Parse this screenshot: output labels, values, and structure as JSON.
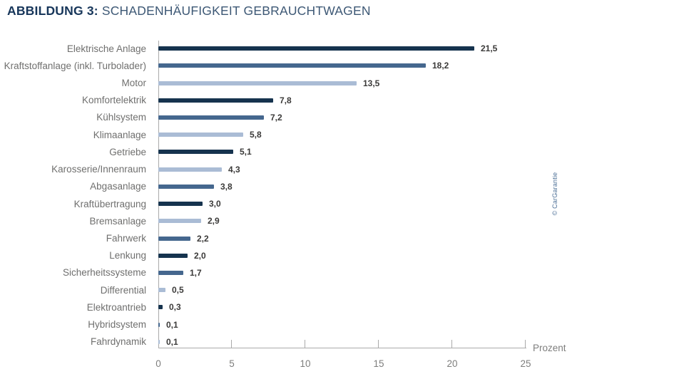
{
  "title": {
    "bold": "ABBILDUNG 3:",
    "regular": "SCHADENHÄUFIGKEIT GEBRAUCHTWAGEN"
  },
  "copyright": "© CarGarantie",
  "palette": {
    "dark": "#16334e",
    "medium": "#45678e",
    "light": "#aabcd5"
  },
  "chart_data": {
    "type": "bar",
    "orientation": "horizontal",
    "title": "Abbildung 3: Schadenhäufigkeit Gebrauchtwagen",
    "xlabel": "Prozent",
    "xlim": [
      0,
      25
    ],
    "xticks": [
      0,
      5,
      10,
      15,
      20,
      25
    ],
    "grid": false,
    "legend": false,
    "categories": [
      "Elektrische Anlage",
      "Kraftstoffanlage (inkl. Turbolader)",
      "Motor",
      "Komfortelektrik",
      "Kühlsystem",
      "Klimaanlage",
      "Getriebe",
      "Karosserie/Innenraum",
      "Abgasanlage",
      "Kraftübertragung",
      "Bremsanlage",
      "Fahrwerk",
      "Lenkung",
      "Sicherheitssysteme",
      "Differential",
      "Elektroantrieb",
      "Hybridsystem",
      "Fahrdynamik"
    ],
    "values": [
      21.5,
      18.2,
      13.5,
      7.8,
      7.2,
      5.8,
      5.1,
      4.3,
      3.8,
      3.0,
      2.9,
      2.2,
      2.0,
      1.7,
      0.5,
      0.3,
      0.1,
      0.1
    ],
    "value_labels": [
      "21,5",
      "18,2",
      "13,5",
      "7,8",
      "7,2",
      "5,8",
      "5,1",
      "4,3",
      "3,8",
      "3,0",
      "2,9",
      "2,2",
      "2,0",
      "1,7",
      "0,5",
      "0,3",
      "0,1",
      "0,1"
    ],
    "bar_colors": [
      "dark",
      "medium",
      "light",
      "dark",
      "medium",
      "light",
      "dark",
      "light",
      "medium",
      "dark",
      "light",
      "medium",
      "dark",
      "medium",
      "light",
      "dark",
      "medium",
      "light"
    ]
  }
}
